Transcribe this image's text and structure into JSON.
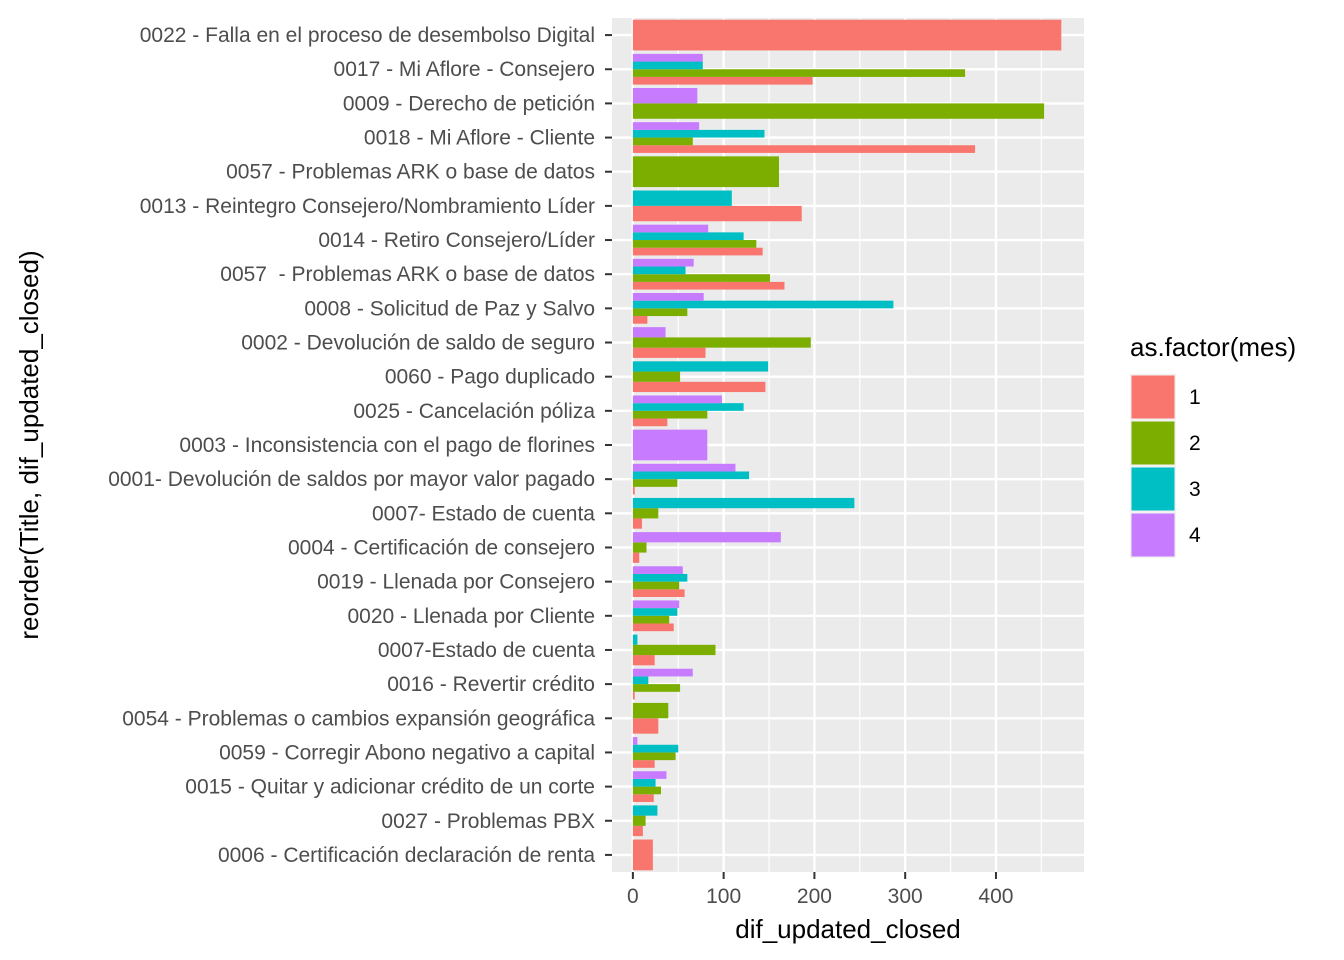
{
  "chart_data": {
    "type": "bar",
    "orientation": "horizontal",
    "position": "dodge",
    "xlabel": "dif_updated_closed",
    "ylabel": "reorder(Title, dif_updated_closed)",
    "xlim": [
      -23,
      497
    ],
    "x_ticks": [
      0,
      100,
      200,
      300,
      400
    ],
    "grid": true,
    "legend": {
      "title": "as.factor(mes)",
      "placement": "right",
      "entries": [
        {
          "key": "1",
          "label": "1",
          "color": "#F8766D"
        },
        {
          "key": "2",
          "label": "2",
          "color": "#7CAE00"
        },
        {
          "key": "3",
          "label": "3",
          "color": "#00BFC4"
        },
        {
          "key": "4",
          "label": "4",
          "color": "#C77CFF"
        }
      ]
    },
    "categories": [
      {
        "label": "0022 - Falla en el proceso de desembolso Digital",
        "values": {
          "1": 472
        }
      },
      {
        "label": "0017 - Mi Aflore - Consejero",
        "values": {
          "1": 198,
          "2": 366,
          "3": 77,
          "4": 77
        }
      },
      {
        "label": "0009 - Derecho de petición",
        "values": {
          "2": 453,
          "4": 71
        }
      },
      {
        "label": "0018 - Mi Aflore - Cliente",
        "values": {
          "1": 377,
          "2": 66,
          "3": 145,
          "4": 73
        }
      },
      {
        "label": "0057 - Problemas ARK o base de datos",
        "values": {
          "2": 161
        }
      },
      {
        "label": "0013 - Reintegro Consejero/Nombramiento Líder",
        "values": {
          "1": 186,
          "3": 109
        }
      },
      {
        "label": "0014 - Retiro Consejero/Líder",
        "values": {
          "1": 143,
          "2": 136,
          "3": 122,
          "4": 83
        }
      },
      {
        "label": "0057  - Problemas ARK o base de datos",
        "values": {
          "1": 167,
          "2": 151,
          "3": 58,
          "4": 67
        }
      },
      {
        "label": "0008 - Solicitud de Paz y Salvo",
        "values": {
          "1": 16,
          "2": 60,
          "3": 287,
          "4": 78
        }
      },
      {
        "label": "0002 - Devolución de saldo de seguro",
        "values": {
          "1": 80,
          "2": 196,
          "4": 36
        }
      },
      {
        "label": "0060 - Pago duplicado",
        "values": {
          "1": 146,
          "2": 52,
          "3": 149
        }
      },
      {
        "label": "0025 - Cancelación póliza",
        "values": {
          "1": 38,
          "2": 82,
          "3": 122,
          "4": 98
        }
      },
      {
        "label": "0003 - Inconsistencia con el pago de florines",
        "values": {
          "4": 82
        }
      },
      {
        "label": "0001- Devolución de saldos por mayor valor pagado",
        "values": {
          "1": 2,
          "2": 49,
          "3": 128,
          "4": 113
        }
      },
      {
        "label": "0007- Estado de cuenta",
        "values": {
          "1": 10,
          "2": 28,
          "3": 244
        }
      },
      {
        "label": "0004 - Certificación de consejero",
        "values": {
          "1": 7,
          "2": 15,
          "4": 163
        }
      },
      {
        "label": "0019 - Llenada por Consejero",
        "values": {
          "1": 57,
          "2": 51,
          "3": 60,
          "4": 55
        }
      },
      {
        "label": "0020 - Llenada por Cliente",
        "values": {
          "1": 45,
          "2": 40,
          "3": 49,
          "4": 51
        }
      },
      {
        "label": "0007-Estado de cuenta",
        "values": {
          "1": 24,
          "2": 91,
          "3": 5
        }
      },
      {
        "label": "0016 - Revertir crédito",
        "values": {
          "1": 2,
          "2": 52,
          "3": 17,
          "4": 66
        }
      },
      {
        "label": "0054 - Problemas o cambios expansión geográfica",
        "values": {
          "1": 28,
          "2": 39
        }
      },
      {
        "label": "0059 - Corregir Abono negativo a capital",
        "values": {
          "1": 24,
          "2": 47,
          "3": 50,
          "4": 5
        }
      },
      {
        "label": "0015 - Quitar y adicionar crédito de un corte",
        "values": {
          "1": 23,
          "2": 31,
          "3": 25,
          "4": 37
        }
      },
      {
        "label": "0027 - Problemas PBX",
        "values": {
          "1": 11,
          "2": 14,
          "3": 27
        }
      },
      {
        "label": "0006 - Certificación declaración de renta",
        "values": {
          "1": 22
        }
      }
    ]
  }
}
